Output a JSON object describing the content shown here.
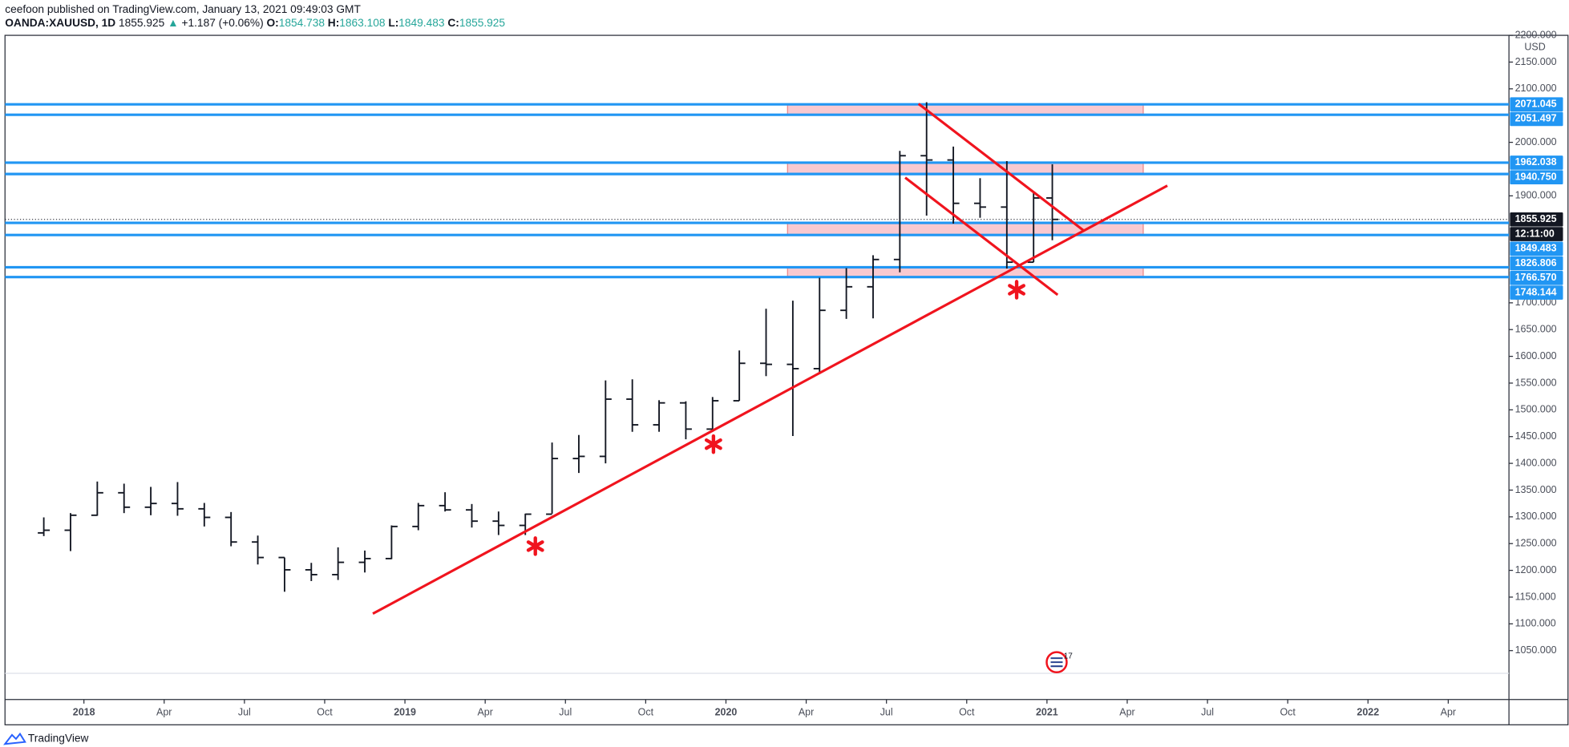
{
  "header": {
    "byline": "ceefoon published on TradingView.com, January 13, 2021 09:49:03 GMT",
    "symbol": "OANDA:XAUUSD, 1D",
    "last": 1855.925,
    "arrow": "▲",
    "change": "+1.187 (+0.06%)",
    "ohlc": [
      {
        "key": "O:",
        "value": 1854.738
      },
      {
        "key": "H:",
        "value": 1863.108
      },
      {
        "key": "L:",
        "value": 1849.483
      },
      {
        "key": "C:",
        "value": 1855.925
      }
    ]
  },
  "footer": {
    "brand": "TradingView"
  },
  "chart_data": {
    "type": "ohlc",
    "color": "#131722",
    "currency": "USD",
    "x": [
      -1.5,
      -0.5,
      0.5,
      1.5,
      2.5,
      3.5,
      4.5,
      5.5,
      6.5,
      7.5,
      8.5,
      9.5,
      10.5,
      11.5,
      12.5,
      13.5,
      14.5,
      15.5,
      16.5,
      17.5,
      18.5,
      19.5,
      20.5,
      21.5,
      22.5,
      23.5,
      24.5,
      25.5,
      26.5,
      27.5,
      28.5,
      29.5,
      30.5,
      31.5,
      32.5,
      33.5,
      34.5,
      35.5,
      36.2
    ],
    "open": [
      1270,
      1275,
      1303,
      1345,
      1318,
      1325,
      1315,
      1299,
      1253,
      1224,
      1201,
      1192,
      1215,
      1222,
      1282,
      1321,
      1313,
      1292,
      1284,
      1305,
      1409,
      1413,
      1520,
      1472,
      1513,
      1464,
      1517,
      1587,
      1585,
      1577,
      1686,
      1730,
      1781,
      1975,
      1967,
      1886,
      1879,
      1776,
      1896
    ],
    "high": [
      1299,
      1307,
      1366,
      1362,
      1356,
      1365,
      1326,
      1309,
      1265,
      1224,
      1214,
      1243,
      1237,
      1284,
      1326,
      1346,
      1324,
      1310,
      1306,
      1439,
      1453,
      1555,
      1557,
      1518,
      1516,
      1524,
      1611,
      1689,
      1704,
      1747,
      1765,
      1789,
      1984,
      2075,
      1992,
      1933,
      1965,
      1906,
      1959
    ],
    "low": [
      1264,
      1236,
      1302,
      1307,
      1303,
      1302,
      1282,
      1245,
      1211,
      1160,
      1180,
      1182,
      1196,
      1221,
      1275,
      1310,
      1280,
      1266,
      1266,
      1306,
      1382,
      1400,
      1459,
      1459,
      1445,
      1459,
      1517,
      1563,
      1451,
      1567,
      1670,
      1671,
      1757,
      1863,
      1848,
      1859,
      1764,
      1776,
      1817
    ],
    "close": [
      1275,
      1303,
      1345,
      1318,
      1325,
      1315,
      1299,
      1253,
      1224,
      1201,
      1192,
      1215,
      1222,
      1282,
      1321,
      1313,
      1292,
      1284,
      1305,
      1409,
      1413,
      1520,
      1472,
      1513,
      1464,
      1517,
      1587,
      1585,
      1577,
      1686,
      1730,
      1781,
      1975,
      1967,
      1886,
      1879,
      1776,
      1896,
      1855.925
    ],
    "xlim": [
      -2.95,
      53.27
    ],
    "ylim": [
      958.5,
      2200
    ],
    "xticks": [
      {
        "value": 0,
        "label": "2018"
      },
      {
        "value": 3,
        "label": "Apr"
      },
      {
        "value": 6,
        "label": "Jul"
      },
      {
        "value": 9,
        "label": "Oct"
      },
      {
        "value": 12,
        "label": "2019"
      },
      {
        "value": 15,
        "label": "Apr"
      },
      {
        "value": 18,
        "label": "Jul"
      },
      {
        "value": 21,
        "label": "Oct"
      },
      {
        "value": 24,
        "label": "2020"
      },
      {
        "value": 27,
        "label": "Apr"
      },
      {
        "value": 30,
        "label": "Jul"
      },
      {
        "value": 33,
        "label": "Oct"
      },
      {
        "value": 36,
        "label": "2021"
      },
      {
        "value": 39,
        "label": "Apr"
      },
      {
        "value": 42,
        "label": "Jul"
      },
      {
        "value": 45,
        "label": "Oct"
      },
      {
        "value": 48,
        "label": "2022"
      },
      {
        "value": 51,
        "label": "Apr"
      }
    ],
    "yticks": [
      {
        "value": 2200,
        "label": "2200.000"
      },
      {
        "value": 2150,
        "label": "2150.000"
      },
      {
        "value": 2100,
        "label": "2100.000"
      },
      {
        "value": 2000,
        "label": "2000.000"
      },
      {
        "value": 1900,
        "label": "1900.000"
      },
      {
        "value": 1700,
        "label": "1700.000"
      },
      {
        "value": 1650,
        "label": "1650.000"
      },
      {
        "value": 1600,
        "label": "1600.000"
      },
      {
        "value": 1550,
        "label": "1550.000"
      },
      {
        "value": 1500,
        "label": "1500.000"
      },
      {
        "value": 1450,
        "label": "1450.000"
      },
      {
        "value": 1400,
        "label": "1400.000"
      },
      {
        "value": 1350,
        "label": "1350.000"
      },
      {
        "value": 1300,
        "label": "1300.000"
      },
      {
        "value": 1250,
        "label": "1250.000"
      },
      {
        "value": 1200,
        "label": "1200.000"
      },
      {
        "value": 1150,
        "label": "1150.000"
      },
      {
        "value": 1100,
        "label": "1100.000"
      },
      {
        "value": 1050,
        "label": "1050.000"
      }
    ],
    "levels": [
      {
        "value": 2071.045,
        "label": "2071.045"
      },
      {
        "value": 2051.497,
        "label": "2051.497"
      },
      {
        "value": 1962.038,
        "label": "1962.038"
      },
      {
        "value": 1940.75,
        "label": "1940.750"
      },
      {
        "value": 1849.483,
        "label": "1849.483"
      },
      {
        "value": 1826.806,
        "label": "1826.806"
      },
      {
        "value": 1766.57,
        "label": "1766.570"
      },
      {
        "value": 1748.144,
        "label": "1748.144"
      }
    ],
    "level_color": "#2196f3",
    "last_price": {
      "value": 1855.925,
      "label": "1855.925"
    },
    "countdown": "12:11:00",
    "zones": [
      {
        "x": [
          26.3,
          39.6
        ],
        "y": [
          2051.497,
          2071.045
        ]
      },
      {
        "x": [
          26.3,
          39.6
        ],
        "y": [
          1940.75,
          1962.038
        ]
      },
      {
        "x": [
          26.3,
          39.6
        ],
        "y": [
          1826.806,
          1849.483
        ]
      },
      {
        "x": [
          26.3,
          39.6
        ],
        "y": [
          1748.144,
          1766.57
        ]
      }
    ],
    "zone_color": "#f8c9d0",
    "trend_lines": [
      {
        "x": [
          10.8,
          40.5
        ],
        "y": [
          1119,
          1919
        ]
      },
      {
        "x": [
          31.2,
          37.4
        ],
        "y": [
          2072,
          1834
        ]
      },
      {
        "x": [
          30.7,
          36.4
        ],
        "y": [
          1934,
          1715
        ]
      }
    ],
    "trend_color": "#f0141e",
    "event_badge": "17"
  }
}
